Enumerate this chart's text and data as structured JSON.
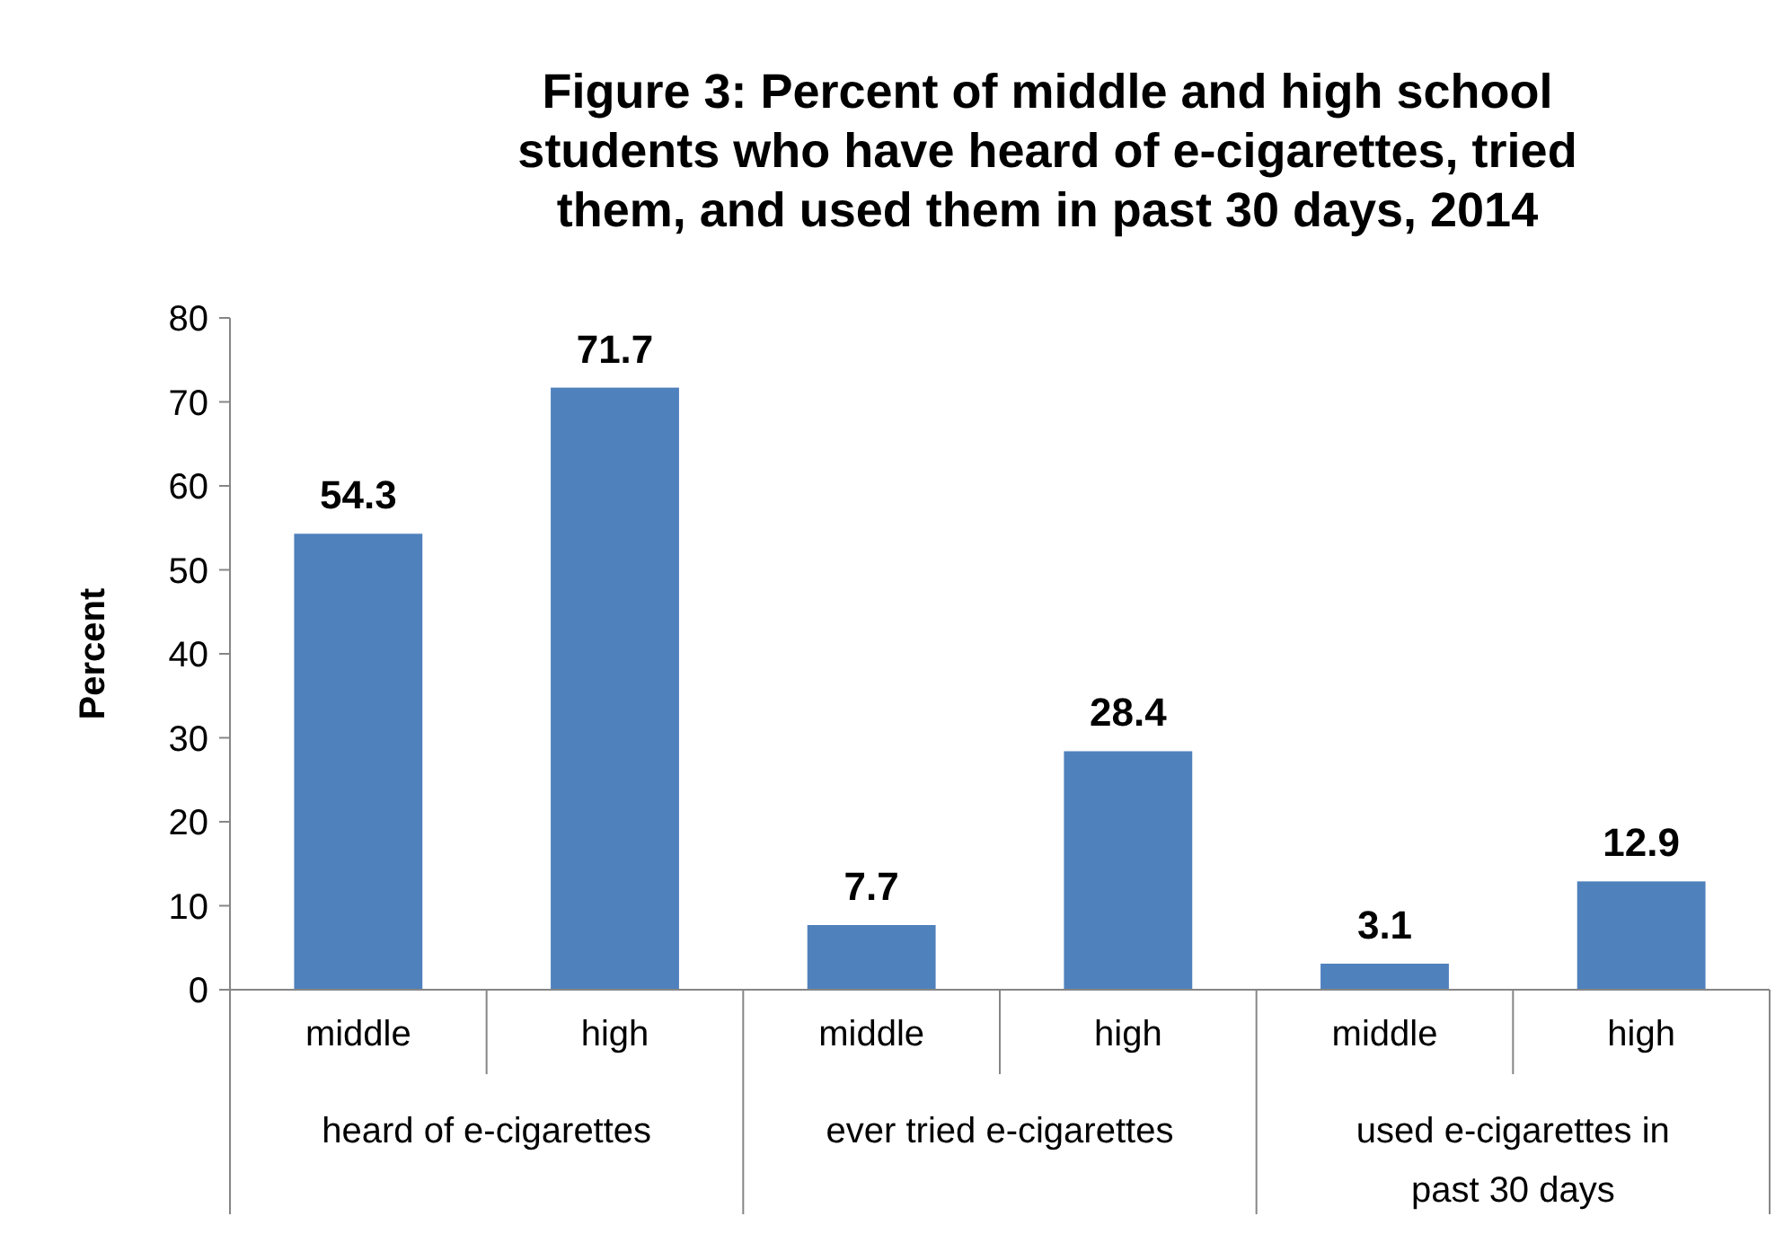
{
  "chart_data": {
    "type": "bar",
    "title": "Figure 3: Percent of middle and high school students who have heard of e-cigarettes, tried them, and used them in past 30 days, 2014",
    "ylabel": "Percent",
    "categories": [
      "middle",
      "high",
      "middle",
      "high",
      "middle",
      "high"
    ],
    "values": [
      54.3,
      71.7,
      7.7,
      28.4,
      3.1,
      12.9
    ],
    "color": "#4f81bd",
    "ylim": [
      0,
      80
    ],
    "yticks": [
      0,
      10,
      20,
      30,
      40,
      50,
      60,
      70,
      80
    ],
    "data_labels": true,
    "grid": false,
    "annotations": [
      "heard of e-cigarettes",
      "ever tried e-cigarettes",
      "used e-cigarettes in past 30 days"
    ]
  }
}
